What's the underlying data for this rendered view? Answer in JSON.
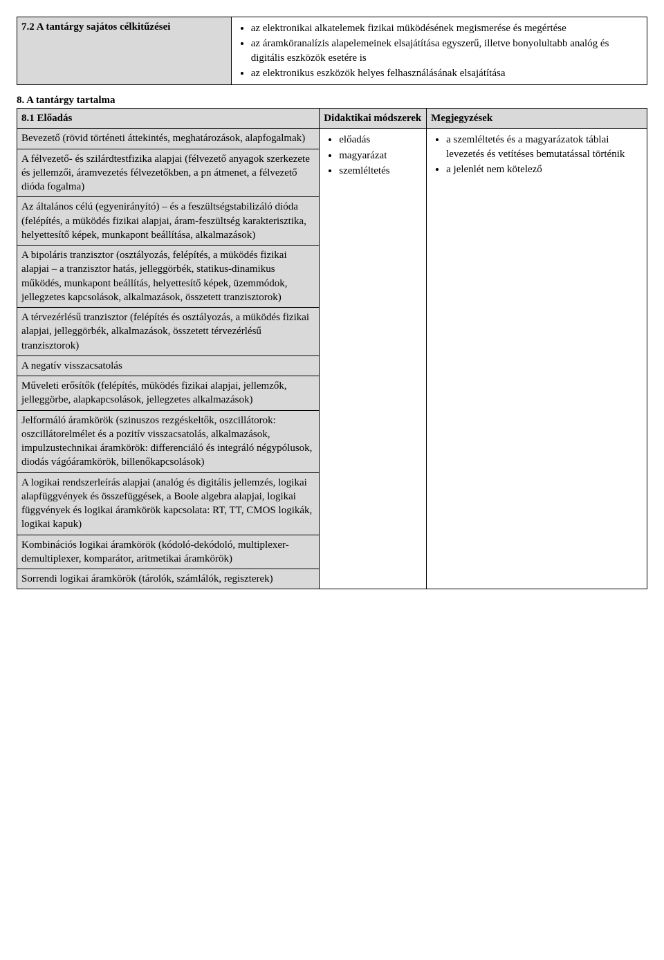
{
  "objectives": {
    "title": "7.2 A tantárgy sajátos célkitűzései",
    "items": [
      "az elektronikai alkatelemek fizikai müködésének megismerése és megértése",
      "az áramköranalízis alapelemeinek elsajátítása egyszerű, illetve bonyolultabb analóg és digitális eszközök esetére is",
      "az elektronikus eszközök helyes felhasználásának elsajátítása"
    ]
  },
  "section8": {
    "title": "8. A tantárgy tartalma",
    "col_headers": {
      "a": "8.1 Előadás",
      "b": "Didaktikai módszerek",
      "c": "Megjegyzések"
    },
    "methods": [
      "előadás",
      "magyarázat",
      "szemléltetés"
    ],
    "notes": [
      "a szemléltetés és a magyarázatok táblai levezetés és vetítéses bemutatással történik",
      "a jelenlét nem kötelező"
    ],
    "topics": [
      "Bevezető (rövid történeti áttekintés, meghatározások, alapfogalmak)",
      "A félvezető- és szilárdtestfizika alapjai (félvezető anyagok szerkezete és jellemzői, áramvezetés félvezetőkben, a pn átmenet, a félvezető dióda fogalma)",
      "Az általános célú (egyenirányító) – és a feszültségstabilizáló dióda (felépítés, a müködés fizikai alapjai, áram-feszültség karakterisztika, helyettesítő képek, munkapont beállítása, alkalmazások)",
      "A bipoláris tranzisztor (osztályozás, felépítés, a müködés fizikai alapjai – a tranzisztor hatás, jelleggörbék, statikus-dinamikus működés, munkapont beállítás, helyettesítő képek, üzemmódok, jellegzetes kapcsolások, alkalmazások, összetett tranzisztorok)",
      "A térvezérlésű tranzisztor (felépítés és osztályozás, a müködés fizikai alapjai, jelleggörbék, alkalmazások, összetett térvezérlésű tranzisztorok)",
      "A negatív visszacsatolás",
      "Műveleti erősítők (felépítés, müködés fizikai alapjai, jellemzők, jelleggörbe, alapkapcsolások, jellegzetes alkalmazások)",
      "Jelformáló áramkörök (szinuszos rezgéskeltők, oszcillátorok: oszcillátorelmélet és a pozitív visszacsatolás, alkalmazások, impulzustechnikai áramkörök: differenciáló és integráló négypólusok, diodás vágóáramkörök, billenőkapcsolások)",
      "A logikai rendszerleírás alapjai (analóg és digitális jellemzés, logikai alapfüggvények és összefüggések, a Boole algebra alapjai, logikai függvények és logikai áramkörök kapcsolata: RT, TT, CMOS logikák, logikai kapuk)",
      "Kombinációs logikai áramkörök (kódoló-dekódoló, multiplexer-demultiplexer, komparátor, aritmetikai áramkörök)",
      "Sorrendi logikai áramkörök (tárolók, számlálók, regiszterek)"
    ]
  }
}
